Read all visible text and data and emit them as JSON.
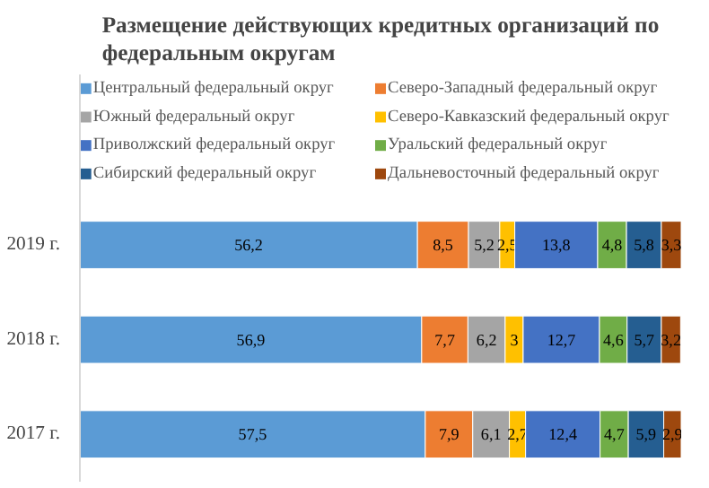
{
  "chart_data": {
    "type": "bar",
    "orientation": "horizontal",
    "stacked": true,
    "legend": "top",
    "grid": false,
    "title": "Размещение действующих кредитных организаций по федеральным округам",
    "categories": [
      "2019 г.",
      "2018 г.",
      "2017 г."
    ],
    "series": [
      {
        "name": "Центральный федеральный округ",
        "color": "#5b9bd5",
        "values": [
          56.2,
          56.9,
          57.5
        ],
        "value_labels": [
          "56,2",
          "56,9",
          "57,5"
        ]
      },
      {
        "name": "Северо-Западный федеральный округ",
        "color": "#ed7d31",
        "values": [
          8.5,
          7.7,
          7.9
        ],
        "value_labels": [
          "8,5",
          "7,7",
          "7,9"
        ]
      },
      {
        "name": "Южный федеральный округ",
        "color": "#a5a5a5",
        "values": [
          5.2,
          6.2,
          6.1
        ],
        "value_labels": [
          "5,2",
          "6,2",
          "6,1"
        ]
      },
      {
        "name": "Северо-Кавказский федеральный округ",
        "color": "#ffc000",
        "values": [
          2.5,
          3,
          2.7
        ],
        "value_labels": [
          "2,5",
          "3",
          "2,7"
        ]
      },
      {
        "name": "Приволжский федеральный округ",
        "color": "#4472c4",
        "values": [
          13.8,
          12.7,
          12.4
        ],
        "value_labels": [
          "13,8",
          "12,7",
          "12,4"
        ]
      },
      {
        "name": "Уральский федеральный округ",
        "color": "#70ad47",
        "values": [
          4.8,
          4.6,
          4.7
        ],
        "value_labels": [
          "4,8",
          "4,6",
          "4,7"
        ]
      },
      {
        "name": "Сибирский федеральный округ",
        "color": "#255e91",
        "values": [
          5.8,
          5.7,
          5.9
        ],
        "value_labels": [
          "5,8",
          "5,7",
          "5,9"
        ]
      },
      {
        "name": "Дальневосточный федеральный округ",
        "color": "#9e480e",
        "values": [
          3.3,
          3.2,
          2.9
        ],
        "value_labels": [
          "3,3",
          "3,2",
          "2,9"
        ]
      }
    ]
  }
}
